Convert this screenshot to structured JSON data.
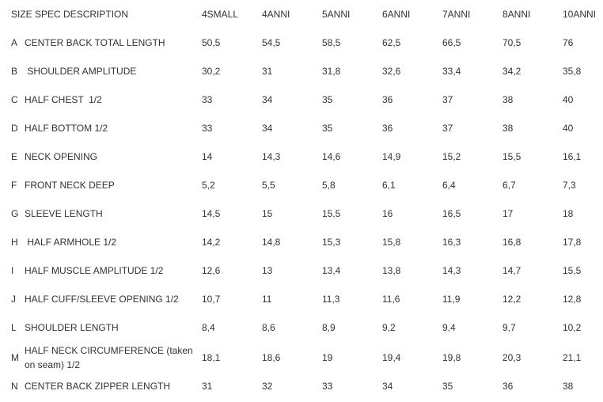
{
  "header": {
    "description": "SIZE SPEC DESCRIPTION",
    "sizes": [
      "4SMALL",
      "4ANNI",
      "5ANNI",
      "6ANNI",
      "7ANNI",
      "8ANNI",
      "10ANNI"
    ]
  },
  "rows": [
    {
      "letter": "A",
      "description": "CENTER BACK TOTAL LENGTH",
      "values": [
        "50,5",
        "54,5",
        "58,5",
        "62,5",
        "66,5",
        "70,5",
        "76"
      ]
    },
    {
      "letter": "B",
      "description": " SHOULDER AMPLITUDE",
      "values": [
        "30,2",
        "31",
        "31,8",
        "32,6",
        "33,4",
        "34,2",
        "35,8"
      ]
    },
    {
      "letter": "C",
      "description": "HALF CHEST  1/2",
      "values": [
        "33",
        "34",
        "35",
        "36",
        "37",
        "38",
        "40"
      ]
    },
    {
      "letter": "D",
      "description": "HALF BOTTOM 1/2",
      "values": [
        "33",
        "34",
        "35",
        "36",
        "37",
        "38",
        "40"
      ]
    },
    {
      "letter": "E",
      "description": "NECK OPENING",
      "values": [
        "14",
        "14,3",
        "14,6",
        "14,9",
        "15,2",
        "15,5",
        "16,1"
      ]
    },
    {
      "letter": "F",
      "description": "FRONT NECK DEEP",
      "values": [
        "5,2",
        "5,5",
        "5,8",
        "6,1",
        "6,4",
        "6,7",
        "7,3"
      ]
    },
    {
      "letter": "G",
      "description": "SLEEVE LENGTH",
      "values": [
        "14,5",
        "15",
        "15,5",
        "16",
        "16,5",
        "17",
        "18"
      ]
    },
    {
      "letter": "H",
      "description": " HALF ARMHOLE 1/2",
      "values": [
        "14,2",
        "14,8",
        "15,3",
        "15,8",
        "16,3",
        "16,8",
        "17,8"
      ]
    },
    {
      "letter": "I",
      "description": "HALF MUSCLE AMPLITUDE 1/2",
      "values": [
        "12,6",
        "13",
        "13,4",
        "13,8",
        "14,3",
        "14,7",
        "15,5"
      ]
    },
    {
      "letter": "J",
      "description": "HALF CUFF/SLEEVE OPENING 1/2",
      "values": [
        "10,7",
        "11",
        "11,3",
        "11,6",
        "11,9",
        "12,2",
        "12,8"
      ]
    },
    {
      "letter": "L",
      "description": "SHOULDER LENGTH",
      "values": [
        "8,4",
        "8,6",
        "8,9",
        "9,2",
        "9,4",
        "9,7",
        "10,2"
      ]
    },
    {
      "letter": "M",
      "description": "HALF NECK CIRCUMFERENCE (taken on seam) 1/2",
      "values": [
        "18,1",
        "18,6",
        "19",
        "19,4",
        "19,8",
        "20,3",
        "21,1"
      ]
    },
    {
      "letter": "N",
      "description": "CENTER BACK ZIPPER LENGTH",
      "values": [
        "31",
        "32",
        "33",
        "34",
        "35",
        "36",
        "38"
      ]
    }
  ]
}
